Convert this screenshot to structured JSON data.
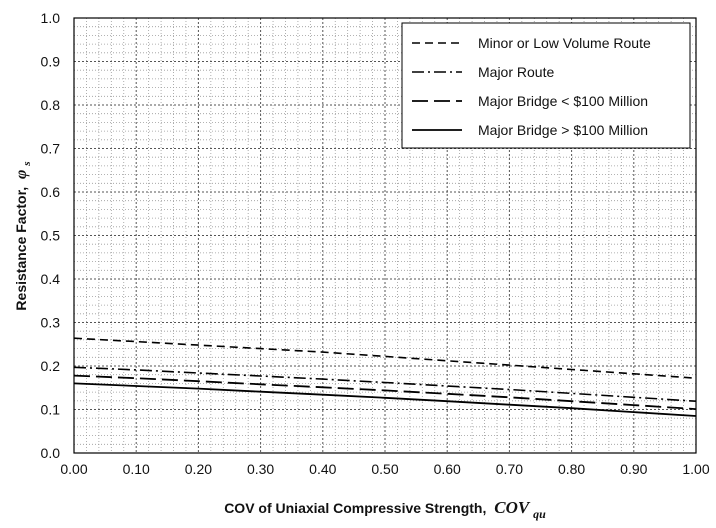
{
  "chart_data": {
    "type": "line",
    "xlabel": "COV of Uniaxial Compressive Strength,",
    "xlabel_symbol": "COV",
    "xlabel_subscript": "qu",
    "ylabel": "Resistance Factor,",
    "ylabel_symbol": "φ",
    "ylabel_subscript": "s",
    "xlim": [
      0,
      1
    ],
    "ylim": [
      0,
      1
    ],
    "x_ticks": [
      "0.00",
      "0.10",
      "0.20",
      "0.30",
      "0.40",
      "0.50",
      "0.60",
      "0.70",
      "0.80",
      "0.90",
      "1.00"
    ],
    "y_ticks": [
      "0.0",
      "0.1",
      "0.2",
      "0.3",
      "0.4",
      "0.5",
      "0.6",
      "0.7",
      "0.8",
      "0.9",
      "1.0"
    ],
    "grid": true,
    "legend_position": "top-right",
    "series": [
      {
        "name": "Minor or Low Volume Route",
        "dash": "dashed",
        "x": [
          0,
          0.1,
          0.2,
          0.3,
          0.4,
          0.5,
          0.6,
          0.7,
          0.8,
          0.9,
          1.0
        ],
        "y": [
          0.264,
          0.256,
          0.248,
          0.24,
          0.232,
          0.222,
          0.212,
          0.202,
          0.192,
          0.182,
          0.172
        ]
      },
      {
        "name": "Major Route",
        "dash": "dashdot",
        "x": [
          0,
          0.1,
          0.2,
          0.3,
          0.4,
          0.5,
          0.6,
          0.7,
          0.8,
          0.9,
          1.0
        ],
        "y": [
          0.197,
          0.191,
          0.184,
          0.177,
          0.17,
          0.162,
          0.154,
          0.146,
          0.137,
          0.128,
          0.119
        ]
      },
      {
        "name": "Major Bridge < $100 Million",
        "dash": "longdash",
        "x": [
          0,
          0.1,
          0.2,
          0.3,
          0.4,
          0.5,
          0.6,
          0.7,
          0.8,
          0.9,
          1.0
        ],
        "y": [
          0.178,
          0.172,
          0.165,
          0.158,
          0.151,
          0.144,
          0.136,
          0.128,
          0.119,
          0.11,
          0.101
        ]
      },
      {
        "name": "Major Bridge > $100 Million",
        "dash": "solid",
        "x": [
          0,
          0.1,
          0.2,
          0.3,
          0.4,
          0.5,
          0.6,
          0.7,
          0.8,
          0.9,
          1.0
        ],
        "y": [
          0.16,
          0.154,
          0.148,
          0.141,
          0.134,
          0.127,
          0.119,
          0.111,
          0.103,
          0.094,
          0.085
        ]
      }
    ]
  }
}
